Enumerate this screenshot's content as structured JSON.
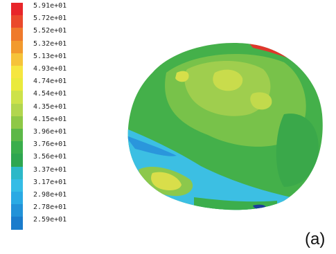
{
  "legend": {
    "entries": [
      {
        "label": "5.91e+01",
        "color": "#e8262a"
      },
      {
        "label": "5.72e+01",
        "color": "#ea4a2c"
      },
      {
        "label": "5.52e+01",
        "color": "#ef7a2c"
      },
      {
        "label": "5.32e+01",
        "color": "#f29a2e"
      },
      {
        "label": "5.13e+01",
        "color": "#f6c33a"
      },
      {
        "label": "4.93e+01",
        "color": "#f6e640"
      },
      {
        "label": "4.74e+01",
        "color": "#eaea3c"
      },
      {
        "label": "4.54e+01",
        "color": "#cde24a"
      },
      {
        "label": "4.35e+01",
        "color": "#b2d64e"
      },
      {
        "label": "4.15e+01",
        "color": "#8ec846"
      },
      {
        "label": "3.96e+01",
        "color": "#5cb848"
      },
      {
        "label": "3.76e+01",
        "color": "#3aae4c"
      },
      {
        "label": "3.56e+01",
        "color": "#2ea650"
      },
      {
        "label": "3.37e+01",
        "color": "#2cb8c8"
      },
      {
        "label": "3.17e+01",
        "color": "#34bce6"
      },
      {
        "label": "2.98e+01",
        "color": "#2aaae4"
      },
      {
        "label": "2.78e+01",
        "color": "#2292d8"
      },
      {
        "label": "2.59e+01",
        "color": "#1a7ccc"
      }
    ]
  },
  "caption": "(a)",
  "colors": {
    "green_dark": "#3fae48",
    "green_mid": "#66bd49",
    "green_light": "#9dcc4e",
    "yellow": "#e2e04e",
    "cyan": "#3cbfe3",
    "blue": "#2790d8",
    "navy": "#1c3d9a",
    "red": "#e0362c"
  }
}
